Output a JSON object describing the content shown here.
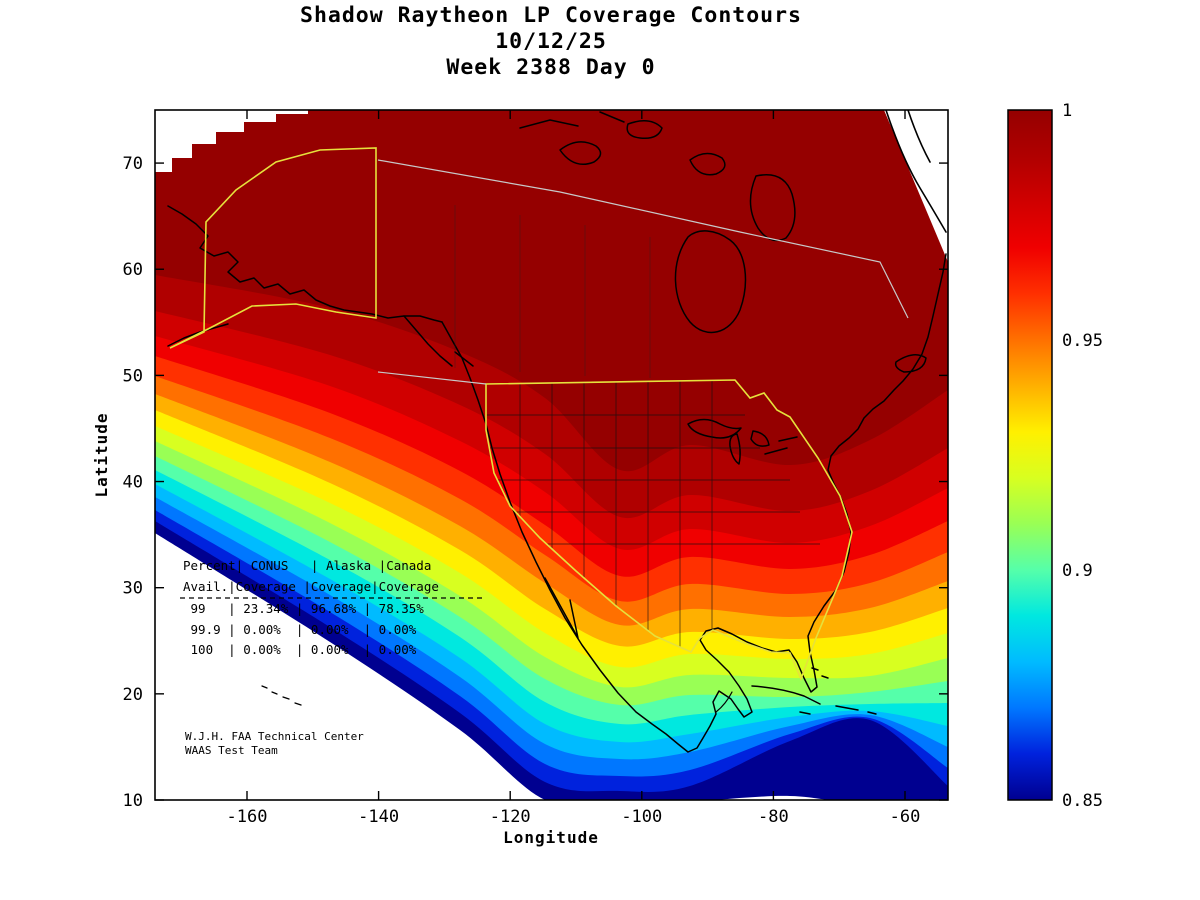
{
  "title": {
    "line1": "Shadow Raytheon LP Coverage Contours",
    "line2": "10/12/25",
    "line3": "Week 2388 Day 0"
  },
  "axes": {
    "x_label": "Longitude",
    "y_label": "Latitude",
    "x_tick_labels": [
      "-160",
      "-140",
      "-120",
      "-100",
      "-80",
      "-60"
    ],
    "x_tick_values": [
      -160,
      -140,
      -120,
      -100,
      -80,
      -60
    ],
    "y_tick_labels": [
      "10",
      "20",
      "30",
      "40",
      "50",
      "60",
      "70"
    ],
    "y_tick_values": [
      10,
      20,
      30,
      40,
      50,
      60,
      70
    ]
  },
  "colorbar": {
    "min": 0.85,
    "max": 1,
    "tick_labels": [
      "1",
      "0.95",
      "0.9",
      "0.85"
    ],
    "tick_values": [
      1,
      0.95,
      0.9,
      0.85
    ]
  },
  "stats_table": {
    "lines": [
      "Percent| CONUS   | Alaska |Canada",
      "Avail.|Coverage |Coverage|Coverage",
      " 99   | 23.34% | 96.68% | 78.35%",
      " 99.9 | 0.00%  | 0.00%  | 0.00%",
      " 100  | 0.00%  | 0.00%  | 0.00%"
    ]
  },
  "credit": {
    "line1": "W.J.H. FAA Technical Center",
    "line2": "WAAS Test Team"
  },
  "chart_data": {
    "type": "contour",
    "title": "Shadow Raytheon LP Coverage Contours",
    "date": "10/12/25",
    "gps_week": 2388,
    "gps_day": 0,
    "xlabel": "Longitude",
    "ylabel": "Latitude",
    "x_ticks": [
      -160,
      -140,
      -120,
      -100,
      -80,
      -60
    ],
    "y_ticks": [
      10,
      20,
      30,
      40,
      50,
      60,
      70
    ],
    "x_range": [
      -174,
      -53
    ],
    "y_range": [
      10,
      75
    ],
    "colorbar": {
      "label_min": 0.85,
      "label_max": 1,
      "ticks": [
        0.85,
        0.9,
        0.95,
        1
      ],
      "tick_labels": [
        "0.85",
        "0.9",
        "0.95",
        "1"
      ]
    },
    "band_colors": [
      "#000090",
      "#0022DD",
      "#0077FF",
      "#00BBFF",
      "#00E8E0",
      "#55FFAA",
      "#99FF55",
      "#D8FF20",
      "#FFF000",
      "#FFB000",
      "#FF7000",
      "#FF3000",
      "#F00000",
      "#D00000",
      "#B00000",
      "#950000"
    ],
    "outline_colors": {
      "coast": "#000000",
      "conus_border": "#E6E13C",
      "alaska_border": "#E6E13C",
      "canada_line": "#C8C8C8"
    },
    "coverage_stats": {
      "columns": [
        "Percent Avail.",
        "CONUS Coverage",
        "Alaska Coverage",
        "Canada Coverage"
      ],
      "rows": [
        [
          "99",
          "23.34%",
          "96.68%",
          "78.35%"
        ],
        [
          "99.9",
          "0.00%",
          "0.00%",
          "0.00%"
        ],
        [
          "100",
          "0.00%",
          "0.00%",
          "0.00%"
        ]
      ]
    }
  }
}
